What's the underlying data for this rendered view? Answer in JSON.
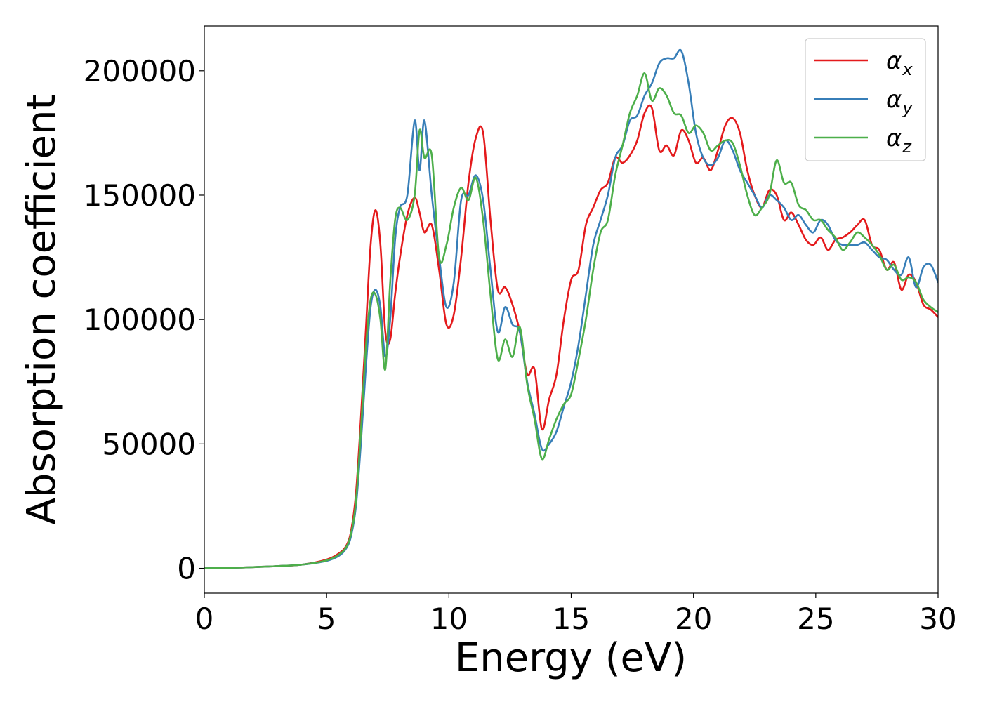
{
  "chart_data": {
    "type": "line",
    "title": "",
    "xlabel": "Energy (eV)",
    "ylabel": "Absorption coefficient",
    "xlim": [
      0,
      30
    ],
    "ylim": [
      -10000,
      218000
    ],
    "xticks": [
      0,
      5,
      10,
      15,
      20,
      25,
      30
    ],
    "yticks": [
      0,
      50000,
      100000,
      150000,
      200000
    ],
    "xtick_labels": [
      "0",
      "5",
      "10",
      "15",
      "20",
      "25",
      "30"
    ],
    "ytick_labels": [
      "0",
      "50000",
      "100000",
      "150000",
      "200000"
    ],
    "grid": false,
    "legend_position": "top-right",
    "series": [
      {
        "name": "α_x",
        "legend_base": "α",
        "legend_sub": "x",
        "color": "#e41a1c",
        "x": [
          0,
          1,
          2,
          3,
          4,
          5,
          5.5,
          5.8,
          6.0,
          6.2,
          6.4,
          6.6,
          6.8,
          7.0,
          7.2,
          7.4,
          7.6,
          7.8,
          8.0,
          8.3,
          8.6,
          8.8,
          9.0,
          9.3,
          9.6,
          9.9,
          10.2,
          10.5,
          10.8,
          11.1,
          11.4,
          11.7,
          12.0,
          12.3,
          12.6,
          12.9,
          13.2,
          13.5,
          13.8,
          14.1,
          14.4,
          14.7,
          15.0,
          15.3,
          15.6,
          15.9,
          16.2,
          16.5,
          16.8,
          17.1,
          17.4,
          17.7,
          18.0,
          18.3,
          18.6,
          18.9,
          19.2,
          19.5,
          19.8,
          20.1,
          20.4,
          20.7,
          21.0,
          21.3,
          21.6,
          21.9,
          22.2,
          22.5,
          22.8,
          23.1,
          23.4,
          23.7,
          24.0,
          24.3,
          24.6,
          24.9,
          25.2,
          25.5,
          25.8,
          26.1,
          26.4,
          26.7,
          27.0,
          27.3,
          27.6,
          27.9,
          28.2,
          28.5,
          28.8,
          29.1,
          29.4,
          29.7,
          30.0
        ],
        "values": [
          0,
          200,
          500,
          900,
          1500,
          3500,
          6000,
          9000,
          15000,
          30000,
          60000,
          95000,
          130000,
          144000,
          130000,
          95000,
          92000,
          110000,
          125000,
          142000,
          149000,
          143000,
          135000,
          138000,
          120000,
          98000,
          102000,
          125000,
          155000,
          173000,
          175000,
          140000,
          112000,
          113000,
          106000,
          95000,
          78000,
          80000,
          56000,
          68000,
          78000,
          100000,
          116000,
          120000,
          138000,
          145000,
          152000,
          155000,
          165000,
          163000,
          166000,
          172000,
          183000,
          185000,
          168000,
          170000,
          166000,
          176000,
          172000,
          163000,
          165000,
          160000,
          168000,
          178000,
          181000,
          175000,
          160000,
          150000,
          145000,
          152000,
          150000,
          140000,
          143000,
          138000,
          132000,
          130000,
          133000,
          128000,
          132000,
          133000,
          135000,
          138000,
          140000,
          130000,
          128000,
          120000,
          123000,
          112000,
          118000,
          115000,
          106000,
          104000,
          101000
        ]
      },
      {
        "name": "α_y",
        "legend_base": "α",
        "legend_sub": "y",
        "color": "#377eb8",
        "x": [
          0,
          1,
          2,
          3,
          4,
          5,
          5.5,
          5.8,
          6.0,
          6.2,
          6.4,
          6.6,
          6.8,
          7.0,
          7.2,
          7.4,
          7.6,
          7.8,
          8.0,
          8.3,
          8.6,
          8.8,
          9.0,
          9.3,
          9.6,
          9.9,
          10.2,
          10.5,
          10.8,
          11.1,
          11.4,
          11.7,
          12.0,
          12.3,
          12.6,
          12.9,
          13.2,
          13.5,
          13.8,
          14.1,
          14.4,
          14.7,
          15.0,
          15.3,
          15.6,
          15.9,
          16.2,
          16.5,
          16.8,
          17.1,
          17.4,
          17.7,
          18.0,
          18.3,
          18.6,
          18.9,
          19.2,
          19.5,
          19.8,
          20.1,
          20.4,
          20.7,
          21.0,
          21.3,
          21.6,
          21.9,
          22.2,
          22.5,
          22.8,
          23.1,
          23.4,
          23.7,
          24.0,
          24.3,
          24.6,
          24.9,
          25.2,
          25.5,
          25.8,
          26.1,
          26.4,
          26.7,
          27.0,
          27.3,
          27.6,
          27.9,
          28.2,
          28.5,
          28.8,
          29.1,
          29.4,
          29.7,
          30.0
        ],
        "values": [
          0,
          200,
          500,
          900,
          1500,
          3000,
          5000,
          8000,
          13000,
          25000,
          50000,
          80000,
          105000,
          112000,
          105000,
          85000,
          100000,
          132000,
          145000,
          150000,
          180000,
          160000,
          180000,
          150000,
          125000,
          105000,
          115000,
          148000,
          150000,
          158000,
          148000,
          120000,
          95000,
          105000,
          98000,
          95000,
          75000,
          62000,
          48000,
          50000,
          55000,
          65000,
          75000,
          90000,
          110000,
          130000,
          140000,
          150000,
          165000,
          170000,
          180000,
          182000,
          190000,
          195000,
          203000,
          205000,
          205000,
          208000,
          195000,
          175000,
          165000,
          162000,
          165000,
          172000,
          168000,
          160000,
          155000,
          150000,
          145000,
          150000,
          148000,
          145000,
          140000,
          142000,
          138000,
          135000,
          140000,
          138000,
          132000,
          130000,
          130000,
          130000,
          131000,
          128000,
          125000,
          124000,
          120000,
          118000,
          125000,
          113000,
          121000,
          122000,
          115000
        ]
      },
      {
        "name": "α_z",
        "legend_base": "α",
        "legend_sub": "z",
        "color": "#4daf4a",
        "x": [
          0,
          1,
          2,
          3,
          4,
          5,
          5.5,
          5.8,
          6.0,
          6.2,
          6.4,
          6.6,
          6.8,
          7.0,
          7.2,
          7.4,
          7.6,
          7.8,
          8.0,
          8.3,
          8.6,
          8.8,
          9.0,
          9.3,
          9.6,
          9.9,
          10.2,
          10.5,
          10.8,
          11.1,
          11.4,
          11.7,
          12.0,
          12.3,
          12.6,
          12.9,
          13.2,
          13.5,
          13.8,
          14.1,
          14.4,
          14.7,
          15.0,
          15.3,
          15.6,
          15.9,
          16.2,
          16.5,
          16.8,
          17.1,
          17.4,
          17.7,
          18.0,
          18.3,
          18.6,
          18.9,
          19.2,
          19.5,
          19.8,
          20.1,
          20.4,
          20.7,
          21.0,
          21.3,
          21.6,
          21.9,
          22.2,
          22.5,
          22.8,
          23.1,
          23.4,
          23.7,
          24.0,
          24.3,
          24.6,
          24.9,
          25.2,
          25.5,
          25.8,
          26.1,
          26.4,
          26.7,
          27.0,
          27.3,
          27.6,
          27.9,
          28.2,
          28.5,
          28.8,
          29.1,
          29.4,
          29.7,
          30.0
        ],
        "values": [
          0,
          200,
          500,
          900,
          1500,
          3200,
          5500,
          8500,
          14000,
          27000,
          55000,
          88000,
          108000,
          110000,
          100000,
          80000,
          115000,
          140000,
          145000,
          140000,
          150000,
          176000,
          165000,
          166000,
          125000,
          130000,
          145000,
          153000,
          148000,
          157000,
          140000,
          110000,
          84000,
          92000,
          85000,
          97000,
          74000,
          60000,
          44000,
          52000,
          60000,
          66000,
          70000,
          84000,
          100000,
          120000,
          135000,
          140000,
          158000,
          170000,
          183000,
          190000,
          199000,
          188000,
          193000,
          190000,
          183000,
          182000,
          175000,
          178000,
          175000,
          168000,
          170000,
          172000,
          171000,
          162000,
          150000,
          142000,
          145000,
          150000,
          164000,
          155000,
          155000,
          146000,
          144000,
          140000,
          140000,
          136000,
          133000,
          128000,
          131000,
          135000,
          133000,
          130000,
          126000,
          120000,
          122000,
          116000,
          117000,
          115000,
          108000,
          105000,
          103000
        ]
      }
    ]
  }
}
